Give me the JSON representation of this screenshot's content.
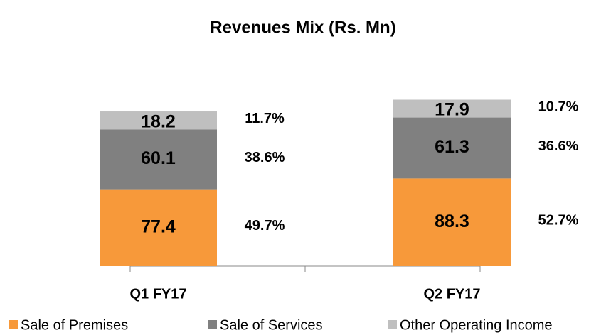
{
  "chart_data": {
    "type": "stacked_bar",
    "title": "Revenues Mix (Rs. Mn)",
    "categories": [
      "Q1 FY17",
      "Q2 FY17"
    ],
    "series": [
      {
        "name": "Sale of Premises",
        "color": "#f7993a",
        "values": [
          77.4,
          88.3
        ],
        "share_labels": [
          "49.7%",
          "52.7%"
        ]
      },
      {
        "name": "Sale of Services",
        "color": "#808080",
        "values": [
          60.1,
          61.3
        ],
        "share_labels": [
          "38.6%",
          "36.6%"
        ]
      },
      {
        "name": "Other Operating Income",
        "color": "#bfbfbf",
        "values": [
          18.2,
          17.9
        ],
        "share_labels": [
          "11.7%",
          "10.7%"
        ]
      }
    ],
    "legend": "bottom"
  }
}
